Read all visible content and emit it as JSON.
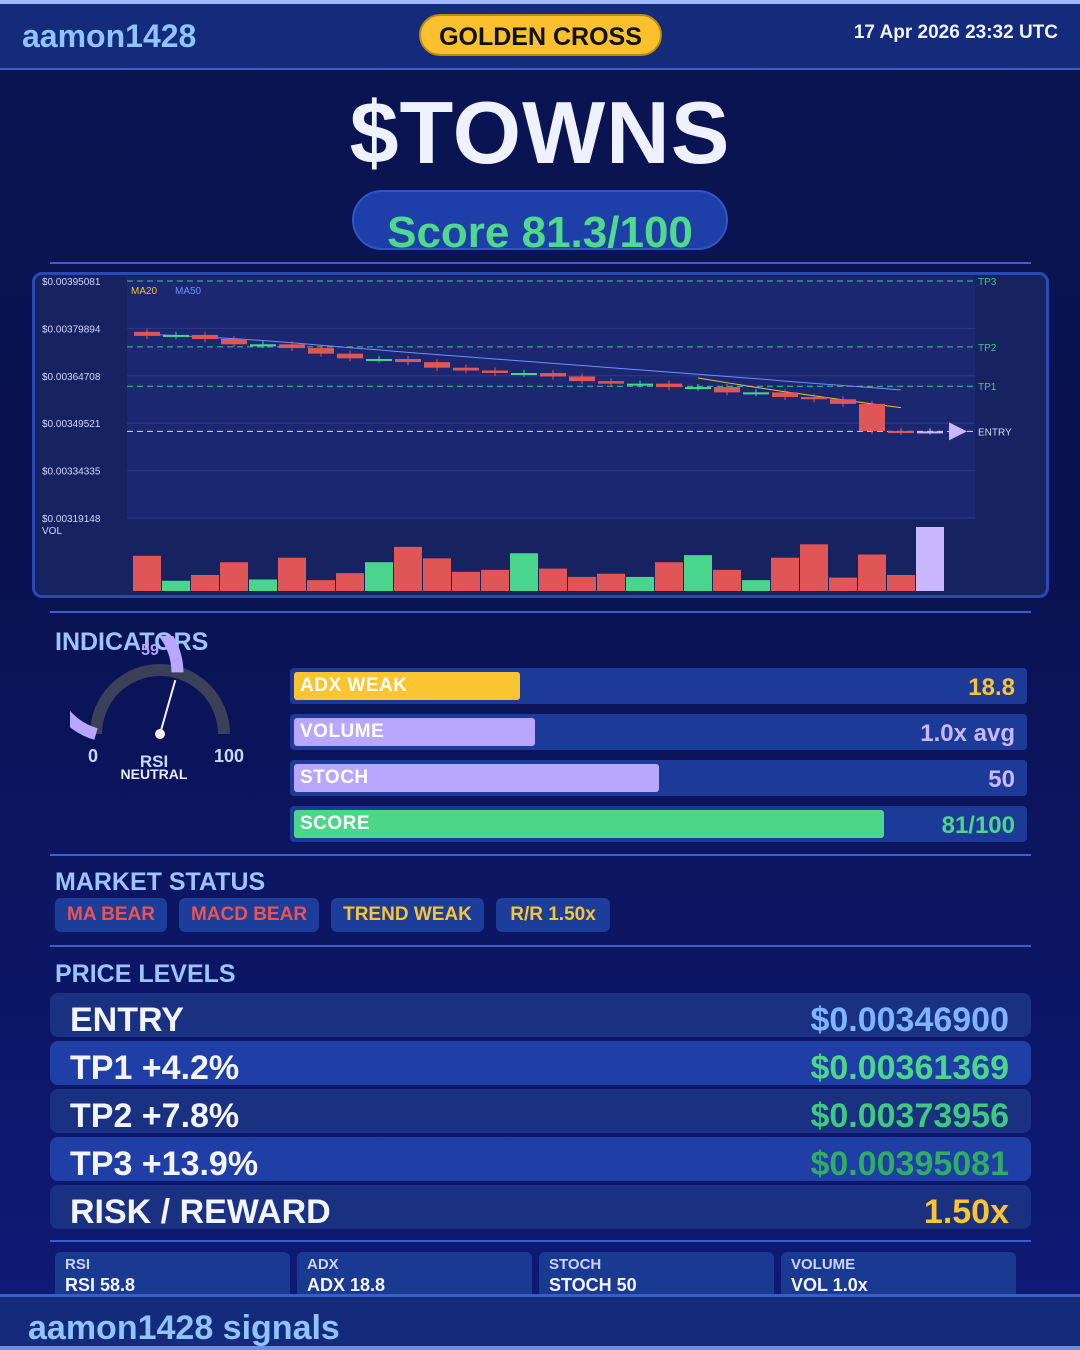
{
  "header": {
    "brand": "aamon1428",
    "pattern": "GOLDEN CROSS",
    "datetime": "17 Apr 2026  23:32 UTC"
  },
  "ticker": "$TOWNS",
  "score_text": "Score 81.3/100",
  "chart_data": {
    "type": "candlestick",
    "price_labels": [
      "$0.00395081",
      "$0.00379894",
      "$0.00364708",
      "$0.00349521",
      "$0.00334335",
      "$0.00319148"
    ],
    "ylim": [
      0.00319148,
      0.00395081
    ],
    "legend": [
      "MA20",
      "MA50"
    ],
    "legend_colors": [
      "#e8c23a",
      "#6f8fff"
    ],
    "volume_label": "VOL",
    "levels": [
      {
        "name": "TP3",
        "price": 0.00395081,
        "color": "#3ec98a"
      },
      {
        "name": "TP2",
        "price": 0.00373956,
        "color": "#3ec98a"
      },
      {
        "name": "TP1",
        "price": 0.00361369,
        "color": "#3ec98a"
      },
      {
        "name": "ENTRY",
        "price": 0.003469,
        "color": "#cfd8ff"
      }
    ],
    "candles": [
      {
        "o": 0.003788,
        "c": 0.003775,
        "v": 0.55,
        "up": false
      },
      {
        "o": 0.003775,
        "c": 0.003778,
        "v": 0.16,
        "up": true
      },
      {
        "o": 0.003778,
        "c": 0.003765,
        "v": 0.25,
        "up": false
      },
      {
        "o": 0.003765,
        "c": 0.003748,
        "v": 0.45,
        "up": false
      },
      {
        "o": 0.003746,
        "c": 0.003748,
        "v": 0.18,
        "up": true
      },
      {
        "o": 0.003748,
        "c": 0.003736,
        "v": 0.52,
        "up": false
      },
      {
        "o": 0.003736,
        "c": 0.003718,
        "v": 0.17,
        "up": false
      },
      {
        "o": 0.003718,
        "c": 0.003703,
        "v": 0.28,
        "up": false
      },
      {
        "o": 0.003699,
        "c": 0.003701,
        "v": 0.45,
        "up": true
      },
      {
        "o": 0.003701,
        "c": 0.003691,
        "v": 0.69,
        "up": false
      },
      {
        "o": 0.003691,
        "c": 0.003673,
        "v": 0.51,
        "up": false
      },
      {
        "o": 0.003673,
        "c": 0.003664,
        "v": 0.3,
        "up": false
      },
      {
        "o": 0.003664,
        "c": 0.003656,
        "v": 0.33,
        "up": false
      },
      {
        "o": 0.003654,
        "c": 0.003656,
        "v": 0.59,
        "up": true
      },
      {
        "o": 0.003656,
        "c": 0.003645,
        "v": 0.35,
        "up": false
      },
      {
        "o": 0.003645,
        "c": 0.00363,
        "v": 0.22,
        "up": false
      },
      {
        "o": 0.00363,
        "c": 0.003622,
        "v": 0.27,
        "up": false
      },
      {
        "o": 0.00362,
        "c": 0.003622,
        "v": 0.22,
        "up": true
      },
      {
        "o": 0.003622,
        "c": 0.003611,
        "v": 0.45,
        "up": false
      },
      {
        "o": 0.003609,
        "c": 0.003611,
        "v": 0.56,
        "up": true
      },
      {
        "o": 0.003611,
        "c": 0.003594,
        "v": 0.33,
        "up": false
      },
      {
        "o": 0.003592,
        "c": 0.003594,
        "v": 0.17,
        "up": true
      },
      {
        "o": 0.003594,
        "c": 0.003579,
        "v": 0.52,
        "up": false
      },
      {
        "o": 0.003579,
        "c": 0.003572,
        "v": 0.73,
        "up": false
      },
      {
        "o": 0.003572,
        "c": 0.003557,
        "v": 0.21,
        "up": false
      },
      {
        "o": 0.003557,
        "c": 0.00347,
        "v": 0.57,
        "up": false
      },
      {
        "o": 0.00347,
        "c": 0.003468,
        "v": 0.25,
        "up": false
      },
      {
        "o": 0.003469,
        "c": 0.003469,
        "v": 1.0,
        "up": null
      }
    ],
    "ma20": [
      null,
      null,
      null,
      null,
      null,
      null,
      null,
      null,
      null,
      null,
      null,
      null,
      null,
      null,
      null,
      null,
      null,
      null,
      null,
      0.00364,
      0.003625,
      0.00361,
      0.003596,
      0.003583,
      0.00357,
      0.003557,
      0.003545
    ],
    "ma50": [
      0.00378,
      0.003776,
      0.003771,
      0.003766,
      0.00376,
      0.003753,
      0.003745,
      0.003737,
      0.00373,
      0.003722,
      0.003715,
      0.003708,
      0.003701,
      0.003694,
      0.003687,
      0.00368,
      0.003673,
      0.003666,
      0.003659,
      0.003652,
      0.003645,
      0.003638,
      0.00363,
      0.003623,
      0.003616,
      0.003609,
      0.003602
    ]
  },
  "indicators_title": "INDICATORS",
  "gauge": {
    "value_label": "59",
    "value": 58.8,
    "min": "0",
    "max": "100",
    "name": "RSI",
    "status": "NEUTRAL"
  },
  "bars": [
    {
      "label": "ADX  WEAK",
      "value": "18.8",
      "fill": 0.31,
      "fill_color": "#fbc531",
      "value_color": "#fbc531"
    },
    {
      "label": "VOLUME",
      "value": "1.0x avg",
      "fill": 0.33,
      "fill_color": "#b9a6ff",
      "value_color": "#c9b8ff"
    },
    {
      "label": "STOCH",
      "value": "50",
      "fill": 0.5,
      "fill_color": "#b9a6ff",
      "value_color": "#c9b8ff"
    },
    {
      "label": "SCORE",
      "value": "81/100",
      "fill": 0.81,
      "fill_color": "#4cd68a",
      "value_color": "#4cd68a"
    }
  ],
  "market_status_title": "MARKET STATUS",
  "chips": [
    {
      "label": "MA BEAR",
      "color": "#ef5350"
    },
    {
      "label": "MACD BEAR",
      "color": "#ef5350"
    },
    {
      "label": "TREND WEAK",
      "color": "#fbc531"
    },
    {
      "label": "R/R  1.50x",
      "color": "#fbc531"
    }
  ],
  "price_levels_title": "PRICE LEVELS",
  "levels": [
    {
      "label": "ENTRY",
      "value": "$0.00346900",
      "value_color": "#7fb4ff",
      "bg": "#1a3080"
    },
    {
      "label": "TP1  +4.2%",
      "value": "$0.00361369",
      "value_color": "#4cd68a",
      "bg": "#1f3fa6"
    },
    {
      "label": "TP2  +7.8%",
      "value": "$0.00373956",
      "value_color": "#3ec97f",
      "bg": "#1a3080"
    },
    {
      "label": "TP3  +13.9%",
      "value": "$0.00395081",
      "value_color": "#2fae63",
      "bg": "#1f3fa6"
    },
    {
      "label": "RISK / REWARD",
      "value": "1.50x",
      "value_color": "#fbc531",
      "bg": "#1a3080"
    }
  ],
  "stats": [
    {
      "k": "RSI",
      "v": "RSI 58.8"
    },
    {
      "k": "ADX",
      "v": "ADX 18.8"
    },
    {
      "k": "STOCH",
      "v": "STOCH 50"
    },
    {
      "k": "VOLUME",
      "v": "VOL 1.0x"
    }
  ],
  "footer": "aamon1428 signals"
}
